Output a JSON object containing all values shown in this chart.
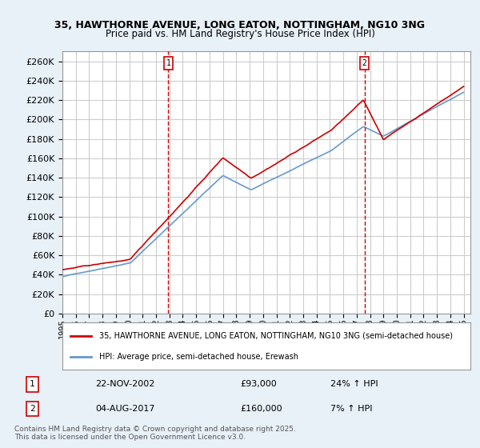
{
  "title": "35, HAWTHORNE AVENUE, LONG EATON, NOTTINGHAM, NG10 3NG",
  "subtitle": "Price paid vs. HM Land Registry's House Price Index (HPI)",
  "ylim": [
    0,
    270000
  ],
  "yticks": [
    0,
    20000,
    40000,
    60000,
    80000,
    100000,
    120000,
    140000,
    160000,
    180000,
    200000,
    220000,
    240000,
    260000
  ],
  "legend_line1": "35, HAWTHORNE AVENUE, LONG EATON, NOTTINGHAM, NG10 3NG (semi-detached house)",
  "legend_line2": "HPI: Average price, semi-detached house, Erewash",
  "transaction1_date": "22-NOV-2002",
  "transaction1_price": "£93,000",
  "transaction1_hpi": "24% ↑ HPI",
  "transaction2_date": "04-AUG-2017",
  "transaction2_price": "£160,000",
  "transaction2_hpi": "7% ↑ HPI",
  "footer": "Contains HM Land Registry data © Crown copyright and database right 2025.\nThis data is licensed under the Open Government Licence v3.0.",
  "line_color_price": "#cc0000",
  "line_color_hpi": "#6699cc",
  "background_color": "#e8f0f8",
  "plot_bg_color": "#ffffff",
  "grid_color": "#cccccc",
  "vline_color": "#cc0000",
  "t1_year": 2002.916,
  "t2_year": 2017.583
}
